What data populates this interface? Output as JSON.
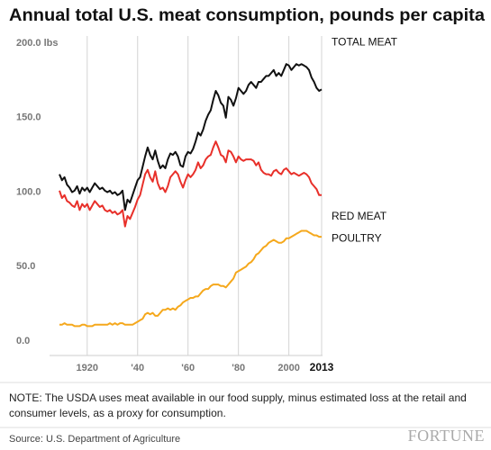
{
  "chart_data": {
    "type": "line",
    "title": "Annual total U.S. meat consumption, pounds per capita",
    "note": [
      "NOTE: The USDA uses meat available in our food supply, minus estimated loss at the retail and",
      "consumer levels, as a proxy for consumption."
    ],
    "source": "Source: U.S. Department of Agriculture",
    "brand": "FORTUNE",
    "x": [
      1909,
      1910,
      1911,
      1912,
      1913,
      1914,
      1915,
      1916,
      1917,
      1918,
      1919,
      1920,
      1921,
      1922,
      1923,
      1924,
      1925,
      1926,
      1927,
      1928,
      1929,
      1930,
      1931,
      1932,
      1933,
      1934,
      1935,
      1936,
      1937,
      1938,
      1939,
      1940,
      1941,
      1942,
      1943,
      1944,
      1945,
      1946,
      1947,
      1948,
      1949,
      1950,
      1951,
      1952,
      1953,
      1954,
      1955,
      1956,
      1957,
      1958,
      1959,
      1960,
      1961,
      1962,
      1963,
      1964,
      1965,
      1966,
      1967,
      1968,
      1969,
      1970,
      1971,
      1972,
      1973,
      1974,
      1975,
      1976,
      1977,
      1978,
      1979,
      1980,
      1981,
      1982,
      1983,
      1984,
      1985,
      1986,
      1987,
      1988,
      1989,
      1990,
      1991,
      1992,
      1993,
      1994,
      1995,
      1996,
      1997,
      1998,
      1999,
      2000,
      2001,
      2002,
      2003,
      2004,
      2005,
      2006,
      2007,
      2008,
      2009,
      2010,
      2011,
      2012,
      2013
    ],
    "series": [
      {
        "name": "TOTAL MEAT",
        "color": "#111111",
        "values": [
          112,
          108,
          110,
          105,
          103,
          100,
          101,
          104,
          99,
          103,
          101,
          103,
          100,
          103,
          106,
          104,
          102,
          103,
          101,
          100,
          101,
          99,
          100,
          98,
          99,
          101,
          88,
          95,
          93,
          98,
          103,
          108,
          110,
          117,
          124,
          130,
          125,
          122,
          128,
          121,
          116,
          118,
          116,
          122,
          126,
          125,
          127,
          124,
          118,
          117,
          124,
          127,
          126,
          129,
          134,
          140,
          138,
          142,
          148,
          152,
          155,
          162,
          168,
          165,
          160,
          158,
          150,
          164,
          162,
          158,
          163,
          170,
          168,
          166,
          168,
          172,
          174,
          172,
          170,
          174,
          174,
          176,
          178,
          178,
          180,
          182,
          178,
          180,
          178,
          182,
          186,
          185,
          182,
          184,
          186,
          185,
          186,
          185,
          184,
          182,
          177,
          174,
          170,
          168,
          169
        ]
      },
      {
        "name": "RED MEAT",
        "color": "#e8302a",
        "values": [
          101,
          96,
          98,
          94,
          93,
          91,
          90,
          94,
          88,
          92,
          90,
          92,
          88,
          91,
          94,
          92,
          90,
          91,
          88,
          87,
          88,
          86,
          87,
          85,
          86,
          88,
          77,
          84,
          82,
          86,
          90,
          95,
          98,
          105,
          112,
          115,
          110,
          107,
          114,
          106,
          102,
          103,
          100,
          104,
          110,
          112,
          114,
          112,
          107,
          103,
          108,
          112,
          110,
          112,
          115,
          120,
          116,
          118,
          122,
          124,
          125,
          130,
          134,
          130,
          125,
          124,
          120,
          128,
          127,
          124,
          120,
          124,
          122,
          121,
          122,
          122,
          122,
          121,
          118,
          120,
          115,
          113,
          112,
          112,
          111,
          114,
          115,
          113,
          112,
          115,
          116,
          114,
          112,
          113,
          112,
          111,
          112,
          113,
          112,
          110,
          106,
          104,
          102,
          98,
          98
        ]
      },
      {
        "name": "POULTRY",
        "color": "#f5a81c",
        "values": [
          11,
          11,
          12,
          11,
          11,
          11,
          10,
          10,
          10,
          11,
          11,
          10,
          10,
          10,
          11,
          11,
          11,
          11,
          11,
          11,
          12,
          11,
          12,
          11,
          12,
          12,
          11,
          11,
          11,
          11,
          12,
          13,
          14,
          15,
          18,
          19,
          18,
          19,
          17,
          17,
          19,
          21,
          21,
          22,
          21,
          22,
          21,
          23,
          24,
          26,
          27,
          28,
          29,
          29,
          30,
          30,
          32,
          34,
          35,
          35,
          37,
          38,
          38,
          38,
          37,
          37,
          36,
          38,
          40,
          42,
          46,
          47,
          48,
          49,
          50,
          52,
          53,
          55,
          58,
          59,
          61,
          63,
          64,
          66,
          67,
          68,
          67,
          66,
          66,
          67,
          69,
          69,
          70,
          71,
          72,
          73,
          74,
          74,
          74,
          73,
          72,
          71,
          71,
          70,
          70
        ]
      }
    ],
    "xlim": [
      1909,
      2013
    ],
    "xticks": [
      1920,
      {
        "value": 1940,
        "label": "'40"
      },
      {
        "value": 1960,
        "label": "'60"
      },
      {
        "value": 1980,
        "label": "'80"
      },
      2000,
      2013
    ],
    "ylim": [
      0,
      200
    ],
    "yticks": [
      {
        "value": 0,
        "label": "0.0"
      },
      {
        "value": 50,
        "label": "50.0"
      },
      {
        "value": 100,
        "label": "100.0"
      },
      {
        "value": 150,
        "label": "150.0"
      },
      {
        "value": 200,
        "label": "200.0 lbs"
      }
    ],
    "grid": "x"
  }
}
